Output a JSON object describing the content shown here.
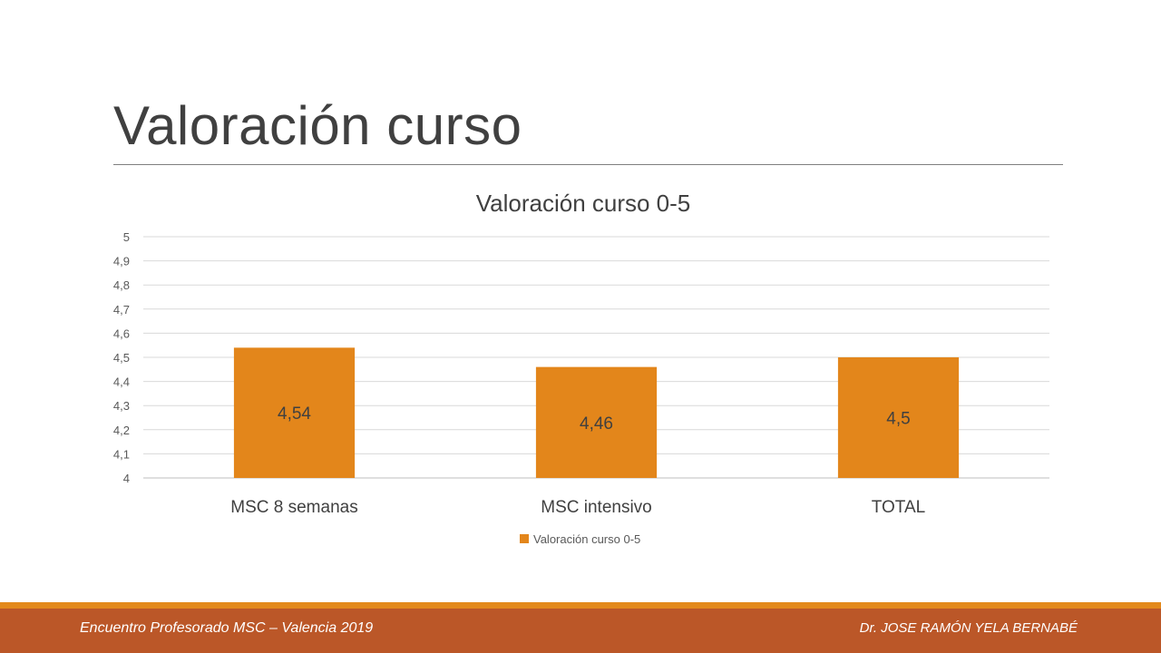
{
  "slide": {
    "title": "Valoración curso"
  },
  "footer": {
    "left_text": "Encuentro Profesorado MSC – Valencia 2019",
    "right_text": "Dr. JOSE RAMÓN YELA BERNABÉ"
  },
  "colors": {
    "bar": "#e3861b",
    "footer_stripe": "#e3891b",
    "footer_bar": "#bb5728"
  },
  "chart_data": {
    "type": "bar",
    "title": "Valoración curso 0-5",
    "categories": [
      "MSC 8 semanas",
      "MSC intensivo",
      "TOTAL"
    ],
    "series": [
      {
        "name": "Valoración curso 0-5",
        "values": [
          4.54,
          4.46,
          4.5
        ],
        "labels": [
          "4,54",
          "4,46",
          "4,5"
        ]
      }
    ],
    "ylim": [
      4,
      5
    ],
    "yticks": [
      "4",
      "4,1",
      "4,2",
      "4,3",
      "4,4",
      "4,5",
      "4,6",
      "4,7",
      "4,8",
      "4,9",
      "5"
    ],
    "grid": true,
    "legend": "bottom"
  }
}
